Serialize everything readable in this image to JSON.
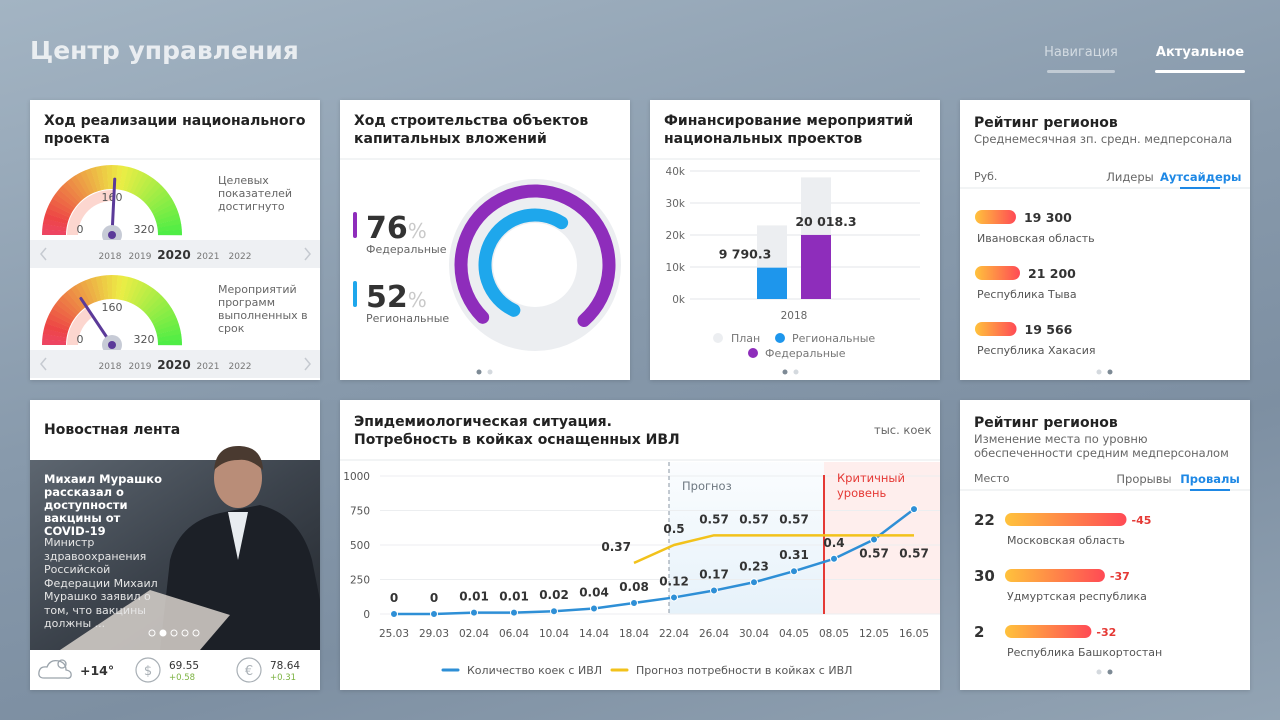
{
  "header": {
    "title": "Центр управления",
    "tabs": [
      "Навигация",
      "Актуальное"
    ],
    "active_tab": "Актуальное"
  },
  "project": {
    "title": "Ход реализации национального проекта",
    "gauges": [
      {
        "label": "Целевых показателей достигнуто",
        "value": 165,
        "range": [
          0,
          320
        ],
        "ticks": [
          0,
          160,
          320
        ],
        "years": [
          "2018",
          "2019",
          "2020",
          "2021",
          "2022"
        ],
        "selected_year": "2020"
      },
      {
        "label": "Мероприятий программ выполненных в срок",
        "value": 100,
        "range": [
          0,
          320
        ],
        "ticks": [
          0,
          160,
          320
        ],
        "years": [
          "2018",
          "2019",
          "2020",
          "2021",
          "2022"
        ],
        "selected_year": "2020"
      }
    ]
  },
  "construction": {
    "title": "Ход строительства объектов капитальных вложений",
    "items": [
      {
        "value": 76,
        "unit": "%",
        "label": "Федеральные",
        "color": "#8e2dbb"
      },
      {
        "value": 52,
        "unit": "%",
        "label": "Региональные",
        "color": "#1ea7ec"
      }
    ]
  },
  "financing": {
    "type": "bar",
    "title": "Финансирование мероприятий национальных проектов",
    "categories": [
      "2018"
    ],
    "plan_name": "План",
    "plan_color": "#eceef1",
    "series": [
      {
        "name": "Региональные",
        "color": "#1e96ec",
        "values": [
          9790.3
        ],
        "value_labels": [
          "9 790.3"
        ],
        "plan": [
          23000
        ]
      },
      {
        "name": "Федеральные",
        "color": "#8e2dbb",
        "values": [
          20018.3
        ],
        "value_labels": [
          "20 018.3"
        ],
        "plan": [
          38000
        ]
      }
    ],
    "ylim": [
      0,
      40000
    ],
    "yticks": [
      {
        "value": 0,
        "label": "0k"
      },
      {
        "value": 10000,
        "label": "10k"
      },
      {
        "value": 20000,
        "label": "20k"
      },
      {
        "value": 30000,
        "label": "30k"
      },
      {
        "value": 40000,
        "label": "40k"
      }
    ]
  },
  "ratings": [
    {
      "title": "Рейтинг регионов",
      "subtitle": "Среднемесячная зп. средн. медперсонала",
      "unit_label": "Руб.",
      "tabs": [
        "Лидеры",
        "Аутсайдеры"
      ],
      "active_tab": "Аутсайдеры",
      "items": [
        {
          "value": 19300,
          "value_label": "19 300",
          "region": "Ивановская область"
        },
        {
          "value": 21200,
          "value_label": "21 200",
          "region": "Республика Тыва"
        },
        {
          "value": 19566,
          "value_label": "19 566",
          "region": "Республика Хакасия"
        }
      ]
    },
    {
      "title": "Рейтинг регионов",
      "subtitle": "Изменение места по уровню обеспеченности средним медперсоналом",
      "unit_label": "Место",
      "tabs": [
        "Прорывы",
        "Провалы"
      ],
      "active_tab": "Провалы",
      "items": [
        {
          "place": 22,
          "change": -45,
          "region": "Московская область"
        },
        {
          "place": 30,
          "change": -37,
          "region": "Удмуртская республика"
        },
        {
          "place": 2,
          "change": -32,
          "region": "Республика Башкортостан"
        }
      ]
    }
  ],
  "news": {
    "title": "Новостная лента",
    "headline": "Михаил Мурашко рассказал о доступности вакцины от COVID-19",
    "text": "Министр здравоохранения Российской Федерации Михаил Мурашко заявил о том, что вакцины должны ...",
    "weather": "+14°",
    "rates": [
      {
        "symbol": "$",
        "value": "69.55",
        "change": "+0.58"
      },
      {
        "symbol": "€",
        "value": "78.64",
        "change": "+0.31"
      }
    ]
  },
  "epidemic": {
    "type": "line",
    "title": [
      "Эпидемиологическая ситуация.",
      "Потребность в койках оснащенных ИВЛ"
    ],
    "unit": "тыс. коек",
    "categories": [
      "25.03",
      "29.03",
      "02.04",
      "06.04",
      "10.04",
      "14.04",
      "18.04",
      "22.04",
      "26.04",
      "30.04",
      "04.05",
      "08.05",
      "12.05",
      "16.05"
    ],
    "series": [
      {
        "name": "Количество коек с ИВЛ",
        "color": "#2e8fd6",
        "values": [
          0,
          0,
          10,
          10,
          20,
          40,
          80,
          120,
          170,
          230,
          310,
          400,
          540,
          760
        ],
        "value_labels": [
          "0",
          "0",
          "0.01",
          "0.01",
          "0.02",
          "0.04",
          "0.08",
          "0.12",
          "0.17",
          "0.23",
          "0.31",
          "0.4",
          null,
          null
        ]
      },
      {
        "name": "Прогноз потребности в койках с ИВЛ",
        "color": "#f2c21b",
        "values": [
          null,
          null,
          null,
          null,
          null,
          null,
          370,
          500,
          570,
          570,
          570,
          570,
          570,
          570
        ],
        "value_labels": [
          null,
          null,
          null,
          null,
          null,
          null,
          "0.37",
          "0.5",
          "0.57",
          "0.57",
          "0.57",
          null,
          "0.57",
          "0.57"
        ]
      }
    ],
    "ylim": [
      0,
      1000
    ],
    "yticks": [
      0,
      250,
      500,
      750,
      1000
    ],
    "forecast_label": "Прогноз",
    "critical_label": "Критичный уровень"
  }
}
